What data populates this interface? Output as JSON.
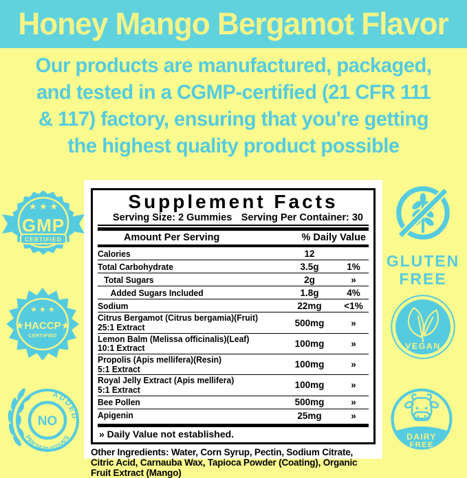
{
  "colors": {
    "cyan": "#55CBE0",
    "banner_bg": "#5FD2DE",
    "banner_text": "#F6F388",
    "background_yellow": "#FAFA8E",
    "panel_white": "#FFFFFF",
    "table_black": "#000000"
  },
  "banner": {
    "title": "Honey Mango Bergamot Flavor"
  },
  "intro": {
    "lines": [
      "Our products are manufactured, packaged,",
      "and tested in a CGMP-certified (21 CFR 111",
      "& 117) factory, ensuring that you're getting",
      "the highest quality product possible"
    ]
  },
  "badges": {
    "gmp": {
      "stars": "★ ★ ★",
      "label": "GMP",
      "sub": "CERTIFIED"
    },
    "haccp": {
      "stars": "★ ★ ★",
      "label": "★HACCP★",
      "sub": "CERTIFIED"
    },
    "no_preservatives": {
      "top": "ADDED",
      "center": "NO",
      "bottom": "PRESERVATIVES"
    },
    "gluten_free": {
      "line1": "GLUTEN",
      "line2": "FREE"
    },
    "vegan": {
      "label": "VEGAN"
    },
    "dairy_free": {
      "line1": "DAIRY",
      "line2": "FREE"
    }
  },
  "supplement_facts": {
    "title": "Supplement Facts",
    "serving_size": "Serving Size: 2 Gummies",
    "servings_per_container": "Serving Per Container: 30",
    "header": {
      "amount": "Amount Per Serving",
      "daily_value": "% Daily Value"
    },
    "rows": [
      {
        "name": "Calories",
        "amount": "12",
        "dv": ""
      },
      {
        "name": "Total Carbohydrate",
        "amount": "3.5g",
        "dv": "1%"
      },
      {
        "name": "Total Sugars",
        "amount": "2g",
        "dv": "»"
      },
      {
        "name": "Added Sugars Included",
        "amount": "1.8g",
        "dv": "4%"
      },
      {
        "name": "Sodium",
        "amount": "22mg",
        "dv": "<1%"
      },
      {
        "name": "Citrus Bergamot (Citrus bergamia)(Fruit)",
        "name2": "25:1 Extract",
        "amount": "500mg",
        "dv": "»"
      },
      {
        "name": "Lemon Balm (Melissa officinalis)(Leaf)",
        "name2": "10:1 Extract",
        "amount": "100mg",
        "dv": "»"
      },
      {
        "name": "Propolis (Apis mellifera)(Resin)",
        "name2": "5:1 Extract",
        "amount": "100mg",
        "dv": "»"
      },
      {
        "name": "Royal Jelly Extract (Apis mellifera)",
        "name2": "5:1 Extract",
        "amount": "100mg",
        "dv": "»"
      },
      {
        "name": "Bee Pollen",
        "amount": "500mg",
        "dv": "»"
      },
      {
        "name": "Apigenin",
        "amount": "25mg",
        "dv": "»"
      }
    ],
    "footnote": "» Daily Value not established.",
    "other_ingredients": "Other Ingredients: Water, Corn Syrup, Pectin, Sodium Citrate, Citric Acid, Carnauba Wax, Tapioca Powder (Coating), Organic Fruit Extract (Mango)"
  }
}
